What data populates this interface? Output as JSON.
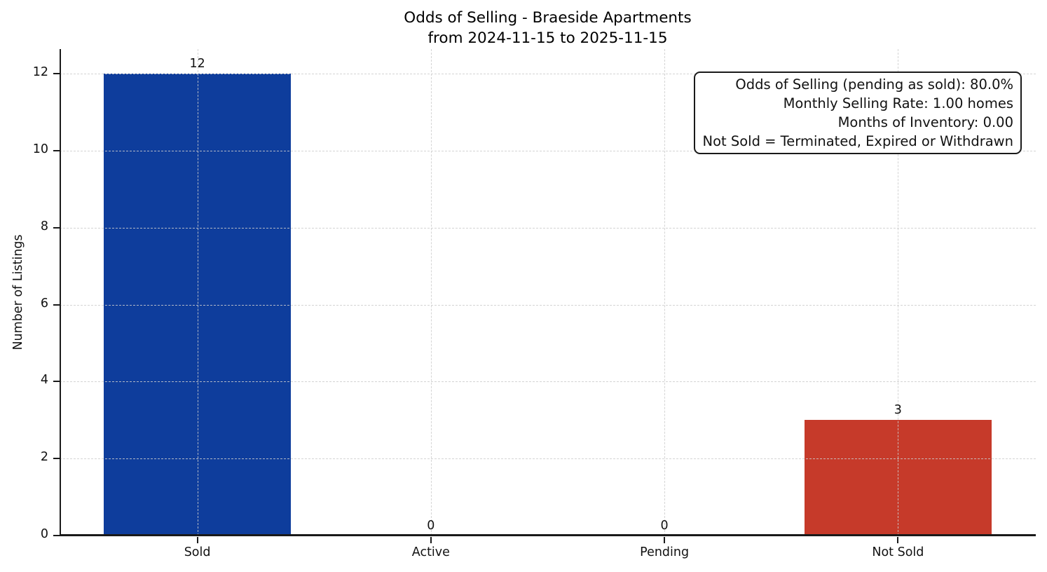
{
  "chart_data": {
    "type": "bar",
    "title": "Odds of Selling - Braeside Apartments\nfrom 2024-11-15 to 2025-11-15",
    "title_line1": "Odds of Selling - Braeside Apartments",
    "title_line2": "from 2024-11-15 to 2025-11-15",
    "categories": [
      "Sold",
      "Active",
      "Pending",
      "Not Sold"
    ],
    "values": [
      12,
      0,
      0,
      3
    ],
    "value_labels": [
      "12",
      "0",
      "0",
      "3"
    ],
    "bar_colors": [
      "#0e3d9c",
      "#0e3d9c",
      "#0e3d9c",
      "#c63a2a"
    ],
    "xlabel": "",
    "ylabel": "Number of Listings",
    "yticks": [
      0,
      2,
      4,
      6,
      8,
      10,
      12
    ],
    "ylim": [
      0,
      12.64
    ],
    "grid": true,
    "legend": false,
    "annotation": {
      "lines": [
        "Odds of Selling (pending as sold): 80.0%",
        "Monthly Selling Rate: 1.00 homes",
        "Months of Inventory: 0.00",
        "Not Sold = Terminated, Expired or Withdrawn"
      ]
    }
  },
  "colors": {
    "sold_bar": "#0e3d9c",
    "not_sold_bar": "#c63a2a",
    "spine": "#1a1a1a",
    "gridline": "#cdcdcd",
    "background": "#ffffff"
  }
}
